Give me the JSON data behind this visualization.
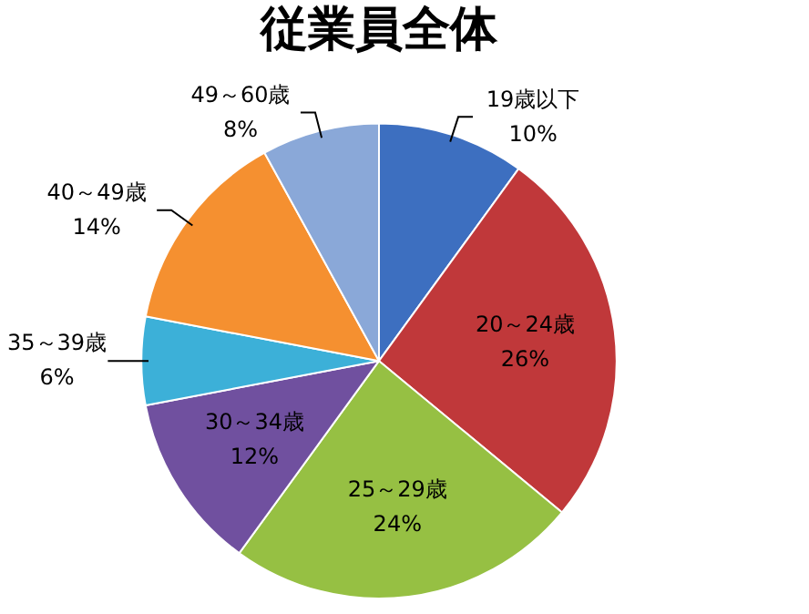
{
  "chart_data": {
    "type": "pie",
    "title": "従業員全体",
    "categories": [
      "19歳以下",
      "20～24歳",
      "25～29歳",
      "30～34歳",
      "35～39歳",
      "40～49歳",
      "49～60歳"
    ],
    "values": [
      10,
      26,
      24,
      12,
      6,
      14,
      8
    ],
    "value_labels": [
      "10%",
      "26%",
      "24%",
      "12%",
      "6%",
      "14%",
      "8%"
    ],
    "colors": [
      "#3d6fc0",
      "#c0383a",
      "#96c043",
      "#70509f",
      "#3cb0d8",
      "#f59030",
      "#8aa8d8"
    ],
    "legend": false
  }
}
